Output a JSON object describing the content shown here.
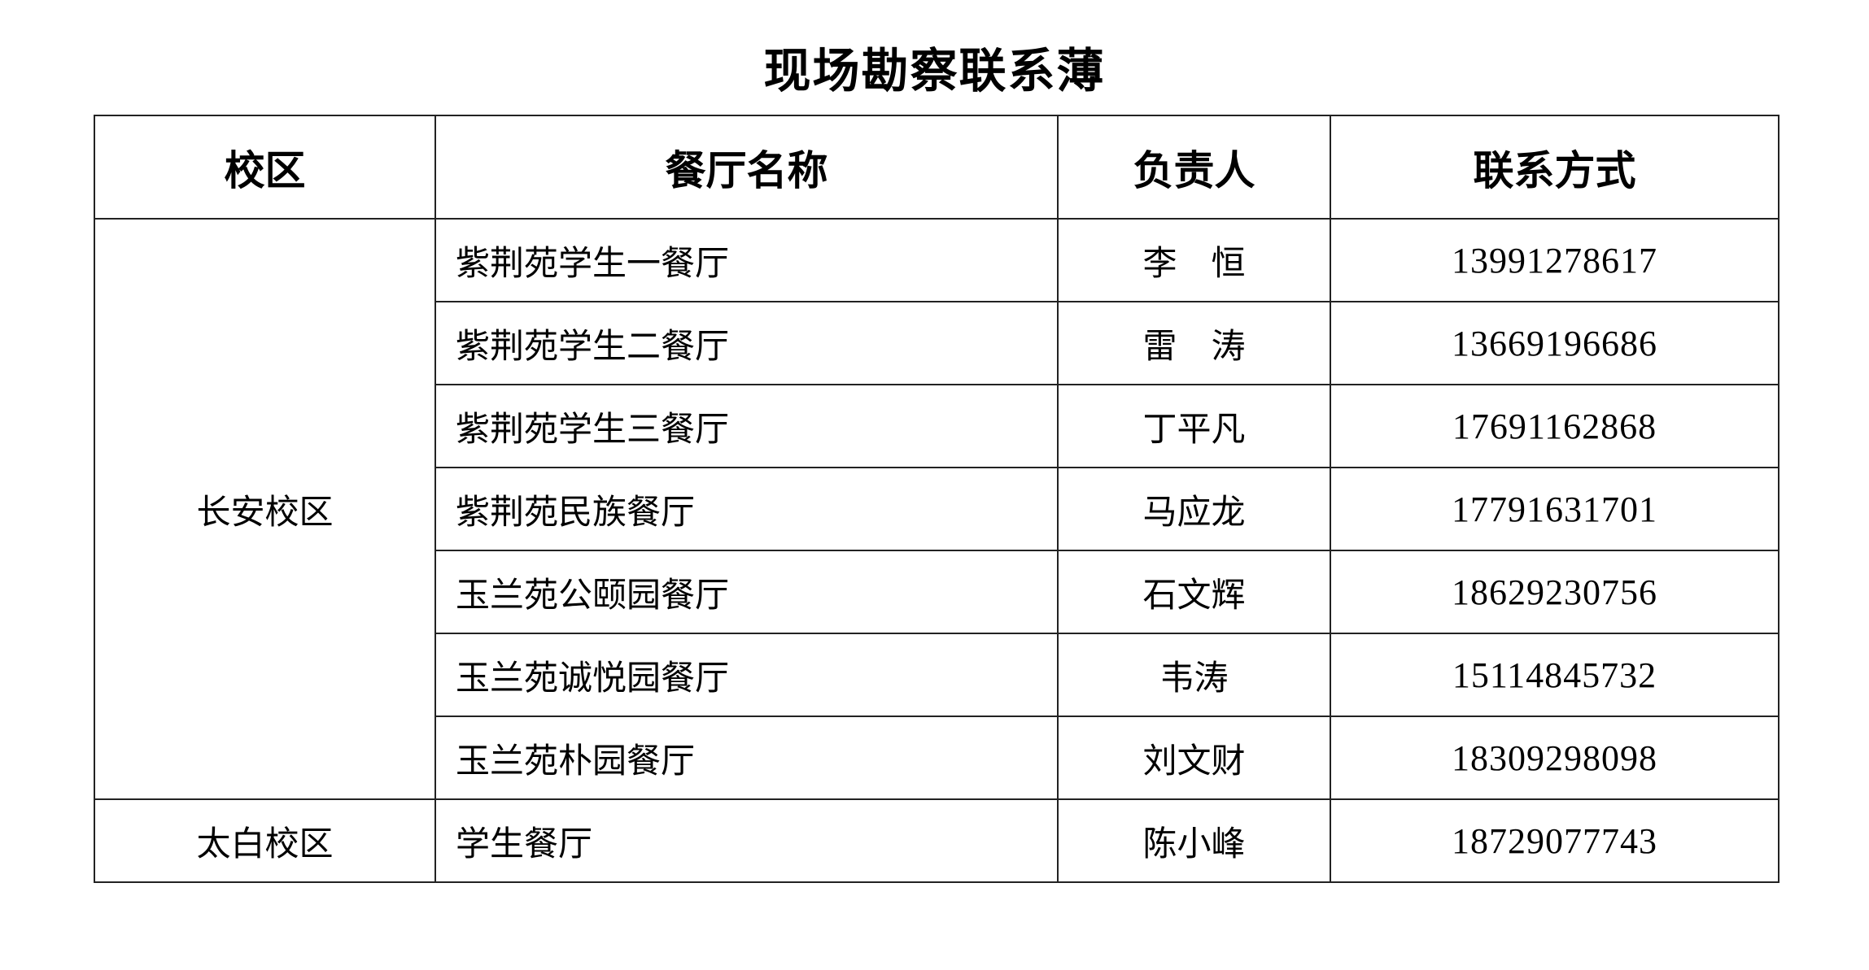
{
  "title": "现场勘察联系薄",
  "table": {
    "headers": [
      "校区",
      "餐厅名称",
      "负责人",
      "联系方式"
    ],
    "campuses": [
      {
        "name": "长安校区",
        "rows": [
          {
            "restaurant": "紫荆苑学生一餐厅",
            "person": "李　恒",
            "phone": "13991278617"
          },
          {
            "restaurant": "紫荆苑学生二餐厅",
            "person": "雷　涛",
            "phone": "13669196686"
          },
          {
            "restaurant": "紫荆苑学生三餐厅",
            "person": "丁平凡",
            "phone": "17691162868"
          },
          {
            "restaurant": "紫荆苑民族餐厅",
            "person": "马应龙",
            "phone": "17791631701"
          },
          {
            "restaurant": "玉兰苑公颐园餐厅",
            "person": "石文辉",
            "phone": "18629230756"
          },
          {
            "restaurant": "玉兰苑诚悦园餐厅",
            "person": "韦涛",
            "phone": "15114845732"
          },
          {
            "restaurant": "玉兰苑朴园餐厅",
            "person": "刘文财",
            "phone": "18309298098"
          }
        ]
      },
      {
        "name": "太白校区",
        "rows": [
          {
            "restaurant": "学生餐厅",
            "person": "陈小峰",
            "phone": "18729077743"
          }
        ]
      }
    ]
  }
}
